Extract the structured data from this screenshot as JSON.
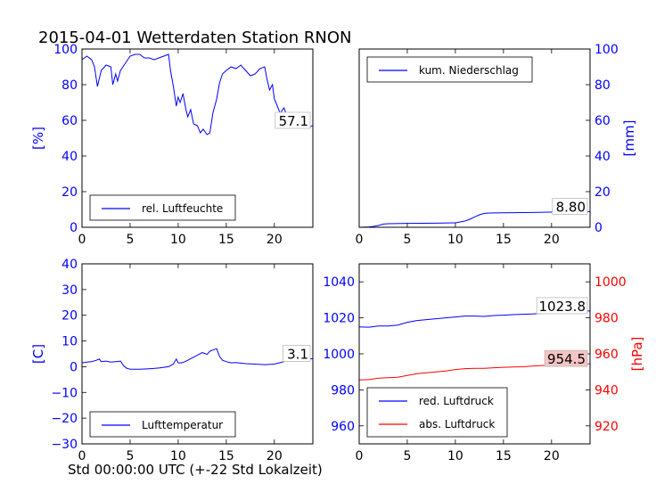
{
  "title": "2015-04-01 Wetterdaten Station RNON",
  "xlabel": "Std 00:00:00 UTC (+-22 Std Lokalzeit)",
  "colors": {
    "blue": "#0000ff",
    "red": "#ff0000",
    "black": "#000000"
  },
  "chart_data": [
    {
      "type": "line",
      "ylabel": "[%]",
      "xlim": [
        0,
        24
      ],
      "ylim": [
        0,
        100
      ],
      "xticks": [
        "0",
        "5",
        "10",
        "15",
        "20"
      ],
      "yticks": [
        "0",
        "20",
        "40",
        "60",
        "80",
        "100"
      ],
      "legend": [
        "rel. Luftfeuchte"
      ],
      "last_value_label": "57.1",
      "series": [
        {
          "name": "rel. Luftfeuchte",
          "color": "#0000ff",
          "x": [
            0,
            0.5,
            1.0,
            1.3,
            1.6,
            2.0,
            2.5,
            3.0,
            3.2,
            3.5,
            3.7,
            4.0,
            4.5,
            5.0,
            5.5,
            6.0,
            6.5,
            7.0,
            7.5,
            8.0,
            8.5,
            9.0,
            9.2,
            9.5,
            9.8,
            10.0,
            10.2,
            10.5,
            10.8,
            11.0,
            11.3,
            11.6,
            12.0,
            12.3,
            12.6,
            13.0,
            13.3,
            13.6,
            14.0,
            14.3,
            14.6,
            15.0,
            15.5,
            16.0,
            16.5,
            17.0,
            17.5,
            18.0,
            18.5,
            19.0,
            19.2,
            19.5,
            19.8,
            20.0,
            20.3,
            20.6,
            21.0,
            21.5,
            22.0,
            22.5,
            23.0,
            23.5,
            24.0
          ],
          "y": [
            94,
            96,
            94,
            90,
            79,
            88,
            91,
            90,
            80,
            86,
            82,
            88,
            92,
            96,
            97,
            97,
            95,
            95,
            94,
            95,
            96,
            97,
            88,
            79,
            68,
            73,
            70,
            75,
            66,
            62,
            66,
            58,
            57,
            53,
            55,
            52,
            53,
            64,
            72,
            81,
            86,
            88,
            90,
            89,
            91,
            88,
            85,
            86,
            89,
            90,
            84,
            77,
            80,
            72,
            68,
            64,
            67,
            60,
            58,
            59,
            57,
            56,
            57
          ]
        }
      ]
    },
    {
      "type": "area",
      "ylabel": "[mm]",
      "xlim": [
        0,
        24
      ],
      "ylim": [
        0,
        100
      ],
      "xticks": [
        "0",
        "5",
        "10",
        "15",
        "20"
      ],
      "yticks": [
        "0",
        "20",
        "40",
        "60",
        "80",
        "100"
      ],
      "legend": [
        "kum. Niederschlag"
      ],
      "last_value_label": "8.80",
      "series": [
        {
          "name": "kum. Niederschlag",
          "color": "#0000ff",
          "x": [
            0,
            1.0,
            1.5,
            2.0,
            2.5,
            3.0,
            5.0,
            8.0,
            10.0,
            11.0,
            11.5,
            12.0,
            12.5,
            13.0,
            13.5,
            15.0,
            18.0,
            21.0,
            24.0
          ],
          "y": [
            0,
            0.2,
            0.5,
            1.0,
            1.8,
            2.0,
            2.2,
            2.3,
            2.5,
            3.5,
            4.5,
            5.8,
            7.0,
            7.8,
            8.0,
            8.1,
            8.3,
            8.6,
            8.8
          ]
        }
      ]
    },
    {
      "type": "line",
      "ylabel": "[C]",
      "xlim": [
        0,
        24
      ],
      "ylim": [
        -30,
        40
      ],
      "xticks": [
        "0",
        "5",
        "10",
        "15",
        "20"
      ],
      "yticks": [
        "−30",
        "−20",
        "−10",
        "0",
        "10",
        "20",
        "30",
        "40"
      ],
      "legend": [
        "Lufttemperatur"
      ],
      "last_value_label": "3.1",
      "series": [
        {
          "name": "Lufttemperatur",
          "color": "#0000ff",
          "x": [
            0,
            0.5,
            1.0,
            1.5,
            1.8,
            2.0,
            2.5,
            3.0,
            3.5,
            4.0,
            4.3,
            4.6,
            5.0,
            6.0,
            7.0,
            8.0,
            9.0,
            9.5,
            9.8,
            10.0,
            10.3,
            10.6,
            11.0,
            11.5,
            12.0,
            12.5,
            13.0,
            13.3,
            13.6,
            14.0,
            14.3,
            14.6,
            15.0,
            15.5,
            16.0,
            17.0,
            18.0,
            19.0,
            20.0,
            20.5,
            21.0,
            21.5,
            22.0,
            22.5,
            23.0,
            24.0
          ],
          "y": [
            1.5,
            1.8,
            2.0,
            2.5,
            3.0,
            2.0,
            2.2,
            1.8,
            2.0,
            2.2,
            0.5,
            -0.5,
            -1.0,
            -1.0,
            -0.8,
            -0.5,
            0.0,
            1.0,
            3.0,
            1.5,
            1.5,
            1.8,
            2.5,
            3.5,
            4.5,
            5.5,
            4.8,
            6.0,
            6.5,
            7.0,
            4.0,
            2.5,
            2.0,
            1.5,
            1.6,
            1.2,
            1.0,
            0.8,
            1.0,
            1.5,
            2.0,
            2.5,
            2.8,
            2.5,
            3.0,
            3.1
          ]
        }
      ]
    },
    {
      "type": "line",
      "ylabel_right": "[hPa]",
      "xlim": [
        0,
        24
      ],
      "ylim": [
        950,
        1050
      ],
      "ylim_right": [
        910,
        1010
      ],
      "xticks": [
        "0",
        "5",
        "10",
        "15",
        "20"
      ],
      "yticks": [
        "960",
        "980",
        "1000",
        "1020",
        "1040"
      ],
      "yticks_right": [
        "920",
        "940",
        "960",
        "980",
        "1000"
      ],
      "legend": [
        "red. Luftdruck",
        "abs. Luftdruck"
      ],
      "last_value_labels": [
        "1023.8",
        "954.5"
      ],
      "series": [
        {
          "name": "red. Luftdruck",
          "color": "#0000ff",
          "axis": "left",
          "x": [
            0,
            1,
            2,
            3,
            4,
            5,
            6,
            7,
            8,
            9,
            10,
            11,
            12,
            13,
            14,
            15,
            16,
            17,
            18,
            19,
            20,
            21,
            22,
            23,
            24
          ],
          "y": [
            1015,
            1014.8,
            1015.5,
            1015.5,
            1016,
            1017.5,
            1018.5,
            1019,
            1019.5,
            1020,
            1020.5,
            1021,
            1021,
            1020.8,
            1021.3,
            1021.5,
            1021.8,
            1022,
            1022.2,
            1022.5,
            1022.8,
            1023,
            1023.3,
            1023.6,
            1023.8
          ]
        },
        {
          "name": "abs. Luftdruck",
          "color": "#ff0000",
          "axis": "right",
          "x": [
            0,
            1,
            2,
            3,
            4,
            5,
            6,
            7,
            8,
            9,
            10,
            11,
            12,
            13,
            14,
            15,
            16,
            17,
            18,
            19,
            20,
            21,
            22,
            23,
            24
          ],
          "y": [
            945.5,
            945.7,
            946.5,
            946.8,
            947,
            948,
            949,
            949.5,
            950,
            950.5,
            951.3,
            951.8,
            952,
            952,
            952.3,
            952.5,
            952.7,
            952.8,
            953.2,
            953.5,
            953.6,
            953.8,
            954,
            954.3,
            954.5
          ]
        }
      ]
    }
  ]
}
